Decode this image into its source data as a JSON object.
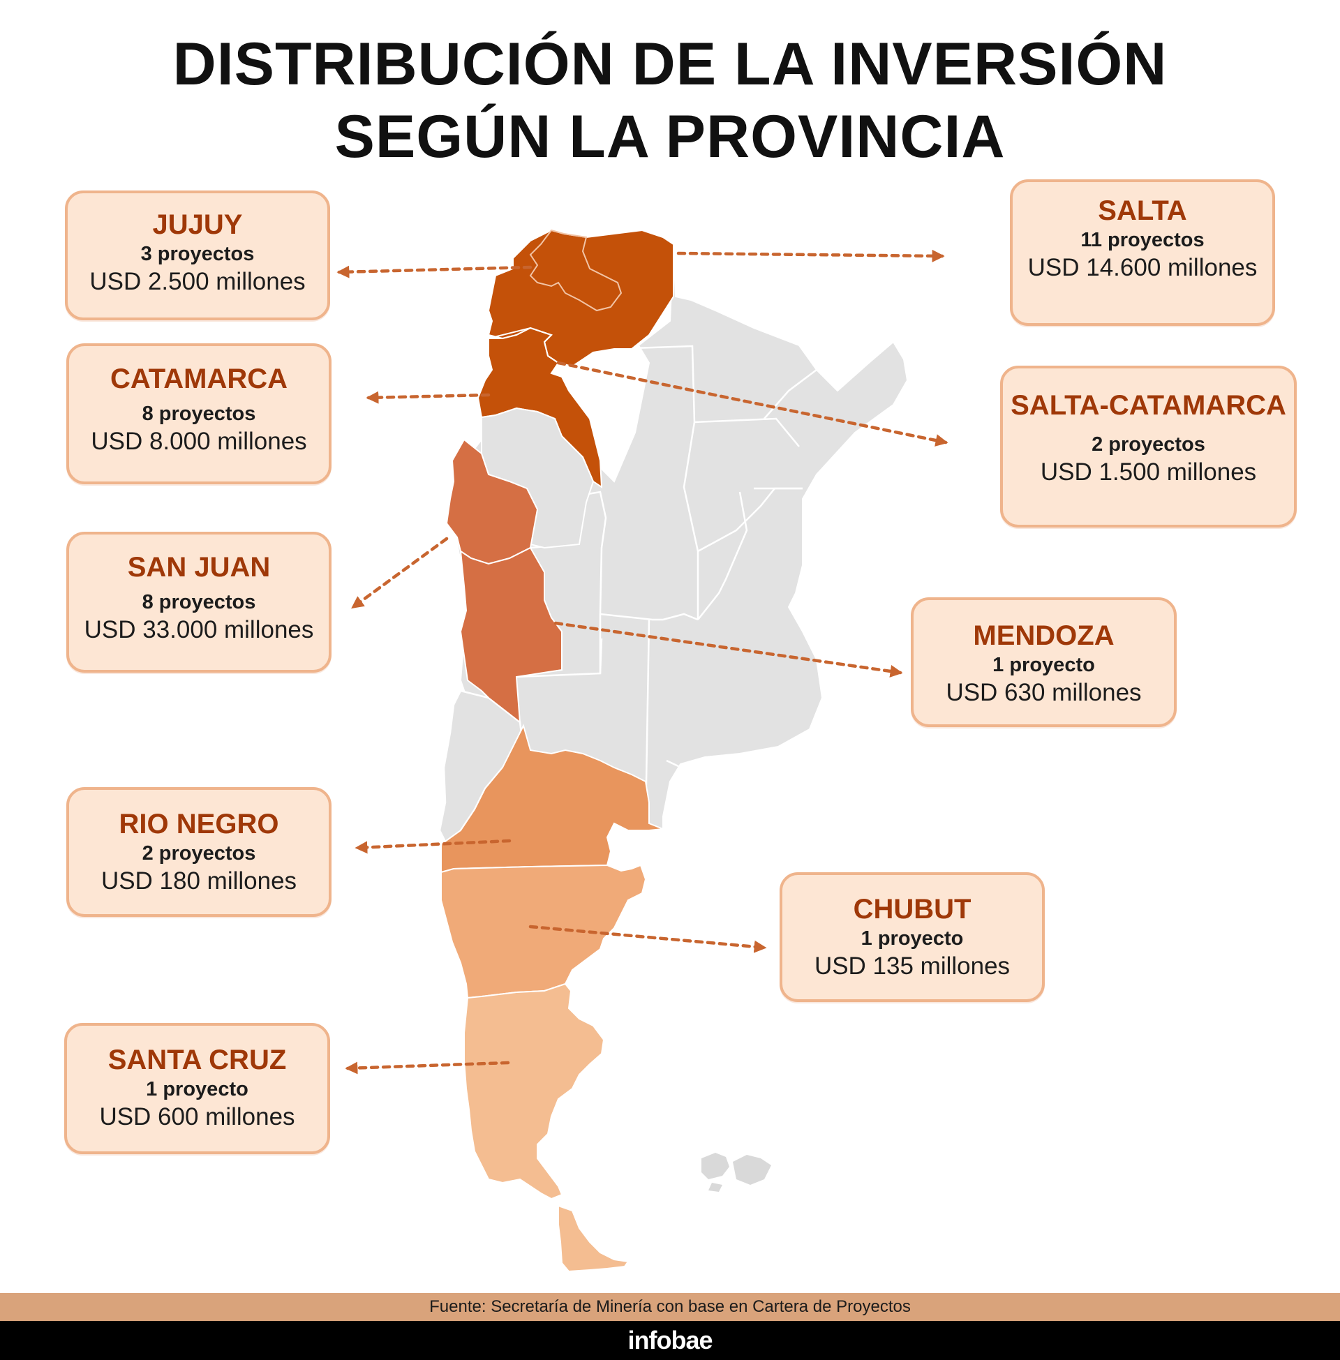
{
  "title": {
    "line1": "DISTRIBUCIÓN DE LA INVERSIÓN",
    "line2": "SEGÚN LA PROVINCIA"
  },
  "colors": {
    "base_gray": "#e2e2e2",
    "jujuy_salta_catamarca": "#c45109",
    "san_juan_mendoza": "#d56f44",
    "rio_negro": "#e8955d",
    "chubut": "#f0aa78",
    "santa_cruz": "#f4bd91",
    "card_bg": "#fde6d4",
    "card_border": "#efb48c",
    "province_name": "#9f3808",
    "arrow": "#c8652f"
  },
  "provinces": [
    {
      "id": "jujuy",
      "name": "JUJUY",
      "projects": "3 proyectos",
      "investment": "USD 2.500 millones"
    },
    {
      "id": "catamarca",
      "name": "CATAMARCA",
      "projects": "8 proyectos",
      "investment": "USD 8.000 millones"
    },
    {
      "id": "san-juan",
      "name": "SAN JUAN",
      "projects": "8 proyectos",
      "investment": "USD 33.000 millones"
    },
    {
      "id": "rio-negro",
      "name": "RIO NEGRO",
      "projects": "2 proyectos",
      "investment": "USD 180 millones"
    },
    {
      "id": "santa-cruz",
      "name": "SANTA CRUZ",
      "projects": "1 proyecto",
      "investment": "USD 600 millones"
    },
    {
      "id": "salta",
      "name": "SALTA",
      "projects": "11 proyectos",
      "investment": "USD 14.600 millones"
    },
    {
      "id": "salta-catamarca",
      "name": "SALTA-CATAMARCA",
      "projects": "2 proyectos",
      "investment": "USD 1.500 millones"
    },
    {
      "id": "mendoza",
      "name": "MENDOZA",
      "projects": "1 proyecto",
      "investment": "USD 630 millones"
    },
    {
      "id": "chubut",
      "name": "CHUBUT",
      "projects": "1 proyecto",
      "investment": "USD 135 millones"
    }
  ],
  "footer": {
    "source": "Fuente: Secretaría de Minería con base en Cartera de Proyectos",
    "brand": "infobae"
  }
}
